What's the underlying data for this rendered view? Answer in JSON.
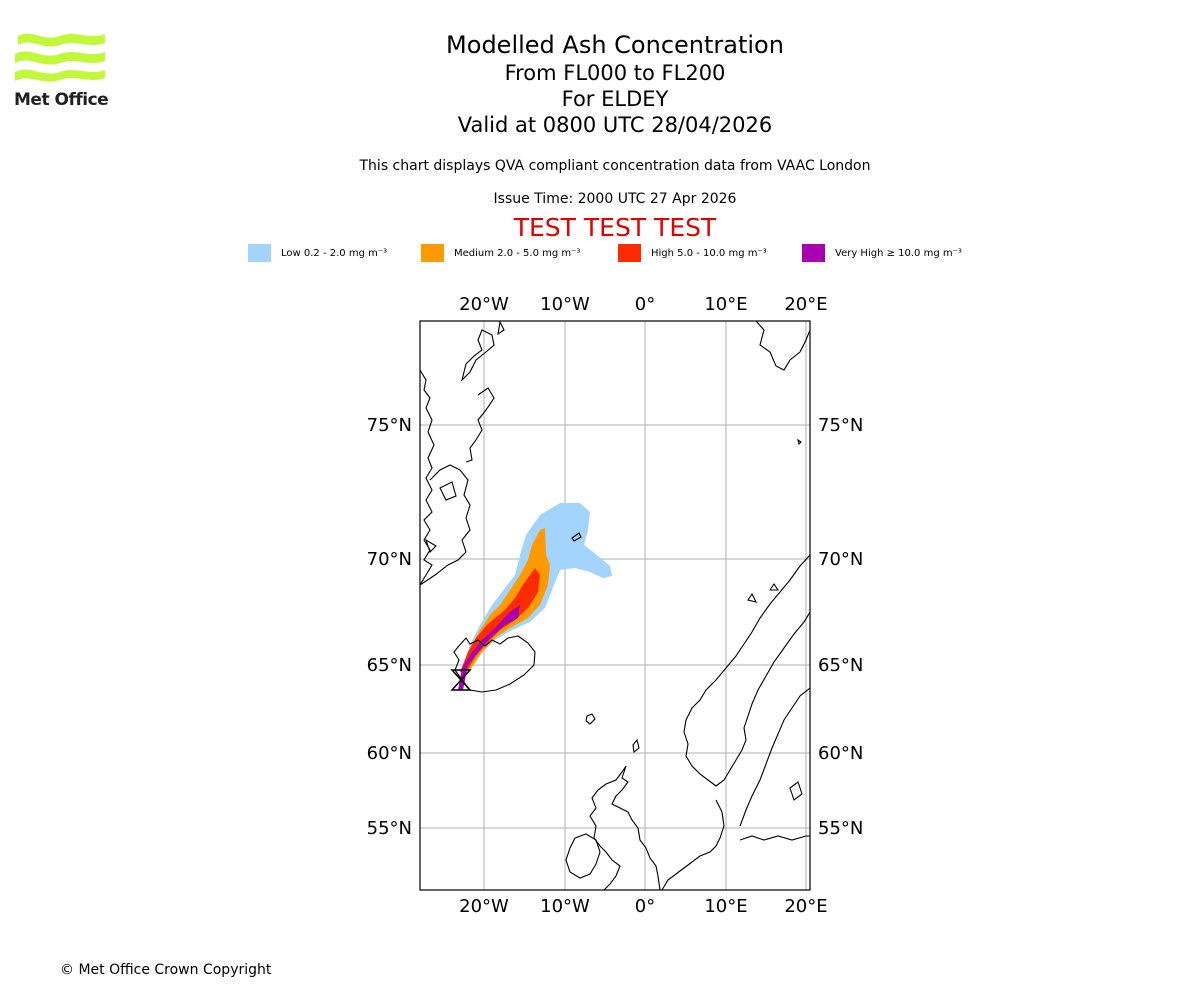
{
  "logo": {
    "text": "Met Office",
    "colors": {
      "waves": "#c3f73a",
      "text": "#231f20"
    }
  },
  "title": {
    "main": "Modelled Ash Concentration",
    "levels": "From FL000 to FL200",
    "location": "For ELDEY",
    "valid": "Valid at 0800 UTC 28/04/2026"
  },
  "description": "This chart displays QVA compliant concentration data from VAAC London",
  "issue_time": "Issue Time: 2000 UTC 27 Apr 2026",
  "test_banner": "TEST TEST TEST",
  "legend": [
    {
      "label": "Low 0.2 - 2.0 mg m⁻³",
      "color": "#a3d4fd"
    },
    {
      "label": "Medium 2.0 - 5.0 mg m⁻³",
      "color": "#ff9a00"
    },
    {
      "label": "High 5.0 - 10.0 mg m⁻³",
      "color": "#ff2b00"
    },
    {
      "label": "Very High ≥ 10.0 mg m⁻³",
      "color": "#a800b0"
    }
  ],
  "map": {
    "lon_labels": [
      "20°W",
      "10°W",
      "0°",
      "10°E",
      "20°E"
    ],
    "lat_labels": [
      "75°N",
      "70°N",
      "65°N",
      "60°N",
      "55°N"
    ],
    "gridlines": true,
    "source_marker": "volcano-marker"
  },
  "copyright": "© Met Office Crown Copyright"
}
